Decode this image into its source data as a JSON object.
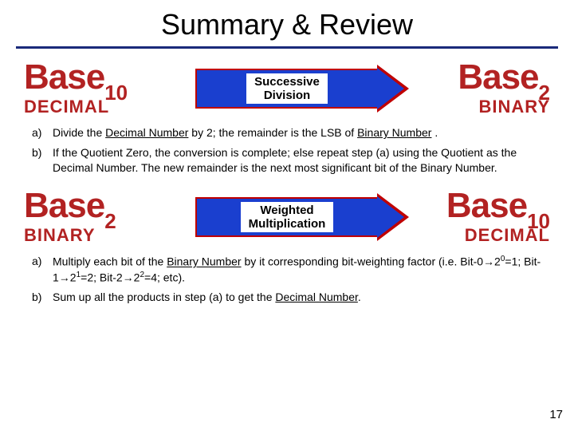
{
  "title": "Summary & Review",
  "page_number": "17",
  "divider_color": "#1a2a7a",
  "section1": {
    "left": {
      "base_word": "Base",
      "sub": "10",
      "label": "DECIMAL"
    },
    "right": {
      "base_word": "Base",
      "sub": "2",
      "label": "BINARY"
    },
    "arrow": {
      "line1": "Successive",
      "line2": "Division",
      "body_color": "#1a3fcf",
      "border_color": "#c00000"
    },
    "steps": [
      {
        "marker": "a)",
        "html": "Divide the <span class='under'>Decimal Number</span> by 2; the remainder is the LSB of <span class='under'>Binary Number</span> ."
      },
      {
        "marker": "b)",
        "html": "If the Quotient Zero, the conversion is complete; else repeat step (a) using the Quotient as the Decimal Number.  The new remainder is the next most significant bit of the Binary Number."
      }
    ]
  },
  "section2": {
    "left": {
      "base_word": "Base",
      "sub": "2",
      "label": "BINARY"
    },
    "right": {
      "base_word": "Base",
      "sub": "10",
      "label": "DECIMAL"
    },
    "arrow": {
      "line1": "Weighted",
      "line2": "Multiplication",
      "body_color": "#1a3fcf",
      "border_color": "#c00000"
    },
    "steps": [
      {
        "marker": "a)",
        "html": "Multiply each bit of the <span class='under'>Binary Number</span> by it corresponding bit-weighting factor (i.e. Bit-0&rarr;2<sup>0</sup>=1; Bit-1&rarr;2<sup>1</sup>=2; Bit-2&rarr;2<sup>2</sup>=4; etc)."
      },
      {
        "marker": "b)",
        "html": "Sum up all the products in step (a) to get the <span class='under'>Decimal Number</span>."
      }
    ]
  },
  "base_text_color": "#b22222"
}
